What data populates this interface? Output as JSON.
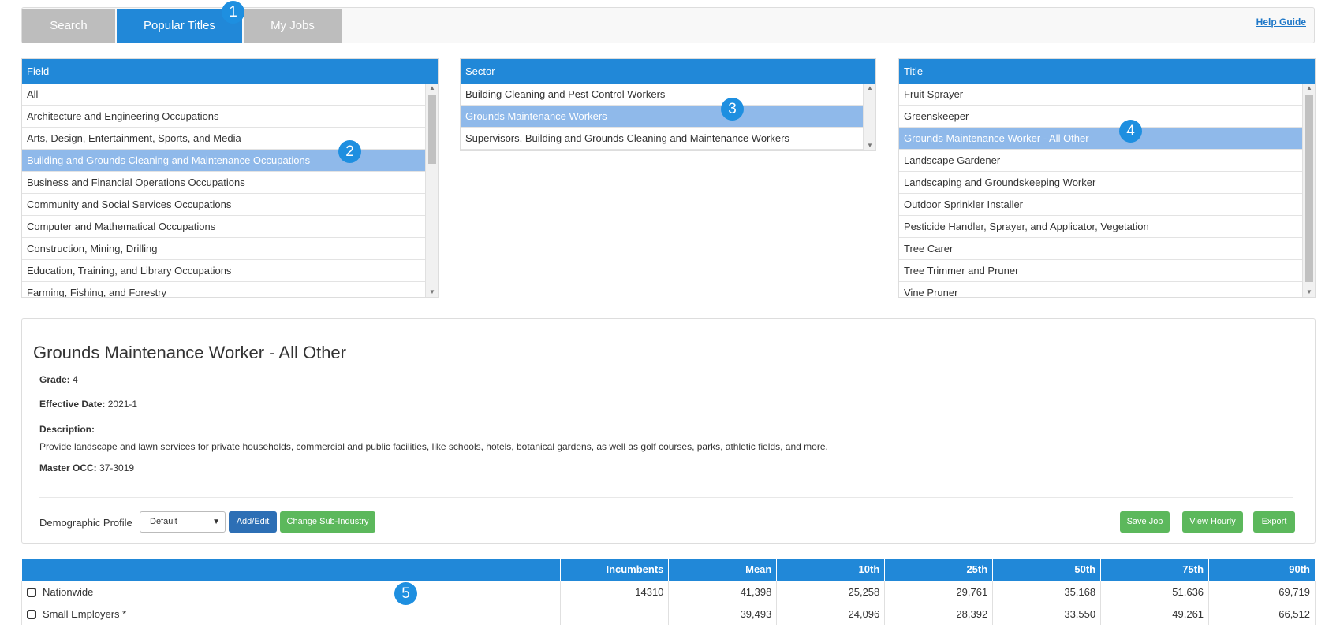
{
  "tabs": [
    {
      "label": "Search"
    },
    {
      "label": "Popular Titles"
    },
    {
      "label": "My Jobs"
    }
  ],
  "help_label": "Help Guide",
  "badges": [
    "1",
    "2",
    "3",
    "4",
    "5"
  ],
  "field_panel": {
    "header": "Field",
    "items": [
      "All",
      "Architecture and Engineering Occupations",
      "Arts, Design, Entertainment, Sports, and Media",
      "Building and Grounds Cleaning and Maintenance Occupations",
      "Business and Financial Operations Occupations",
      "Community and Social Services Occupations",
      "Computer and Mathematical Occupations",
      "Construction, Mining, Drilling",
      "Education, Training, and Library Occupations",
      "Farming, Fishing, and Forestry"
    ],
    "selected": "Building and Grounds Cleaning and Maintenance Occupations"
  },
  "sector_panel": {
    "header": "Sector",
    "items": [
      "Building Cleaning and Pest Control Workers",
      "Grounds Maintenance Workers",
      "Supervisors, Building and Grounds Cleaning and Maintenance Workers"
    ],
    "selected": "Grounds Maintenance Workers"
  },
  "title_panel": {
    "header": "Title",
    "items": [
      "Fruit Sprayer",
      "Greenskeeper",
      "Grounds Maintenance Worker - All Other",
      "Landscape Gardener",
      "Landscaping and Groundskeeping Worker",
      "Outdoor Sprinkler Installer",
      "Pesticide Handler, Sprayer, and Applicator, Vegetation",
      "Tree Carer",
      "Tree Trimmer and Pruner",
      "Vine Pruner"
    ],
    "selected": "Grounds Maintenance Worker - All Other"
  },
  "details": {
    "title": "Grounds Maintenance Worker - All Other",
    "grade_label": "Grade:",
    "grade": "4",
    "effective_label": "Effective Date:",
    "effective": "2021-1",
    "description_label": "Description:",
    "description": "Provide landscape and lawn services for private households, commercial and public facilities, like schools, hotels, botanical gardens, as well as golf courses, parks, athletic fields, and more.",
    "master_label": "Master OCC:",
    "master": "37-3019",
    "demo_label": "Demographic Profile",
    "demo_value": "Default",
    "add_edit": "Add/Edit",
    "change_sub": "Change Sub-Industry",
    "save_job": "Save Job",
    "view_hourly": "View Hourly",
    "export": "Export"
  },
  "table": {
    "headers": [
      "",
      "Incumbents",
      "Mean",
      "10th",
      "25th",
      "50th",
      "75th",
      "90th"
    ],
    "rows": [
      [
        "Nationwide",
        "14310",
        "41,398",
        "25,258",
        "29,761",
        "35,168",
        "51,636",
        "69,719"
      ],
      [
        "Small Employers *",
        "",
        "39,493",
        "24,096",
        "28,392",
        "33,550",
        "49,261",
        "66,512"
      ]
    ]
  },
  "colors": {
    "primary": "#2188d8",
    "selected_row": "#8fb9ea",
    "tab_gray": "#bdbdbd",
    "green_button": "#5cb85c",
    "blue_button": "#2d6fb5"
  }
}
